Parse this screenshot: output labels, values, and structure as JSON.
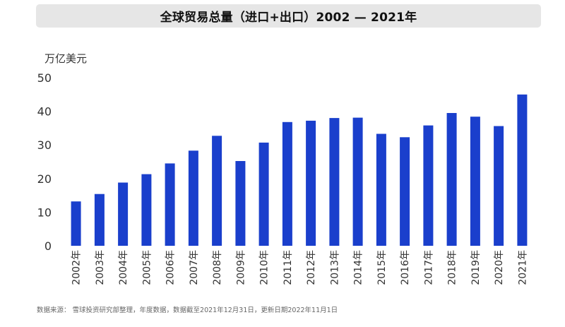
{
  "title": "全球贸易总量（进口+出口）2002 — 2021年",
  "unit_label": "万亿美元",
  "source_note": "数据来源： 雪球投资研究部整理，年度数据，数据截至2021年12月31日，更新日期2022年11月1日",
  "colors": {
    "bar": "#1a3fcc",
    "title_bg": "#e6e6e6",
    "axis_text": "#333333"
  },
  "chart_data": {
    "type": "bar",
    "title": "全球贸易总量（进口+出口）2002 — 2021年",
    "ylabel": "万亿美元",
    "xlabel": "",
    "ylim": [
      0,
      50
    ],
    "yticks": [
      0,
      10,
      20,
      30,
      40,
      50
    ],
    "grid": false,
    "categories": [
      "2002年",
      "2003年",
      "2004年",
      "2005年",
      "2006年",
      "2007年",
      "2008年",
      "2009年",
      "2010年",
      "2011年",
      "2012年",
      "2013年",
      "2014年",
      "2015年",
      "2016年",
      "2017年",
      "2018年",
      "2019年",
      "2020年",
      "2021年"
    ],
    "values": [
      13.2,
      15.4,
      18.8,
      21.3,
      24.5,
      28.3,
      32.7,
      25.2,
      30.7,
      36.8,
      37.2,
      38.0,
      38.1,
      33.3,
      32.3,
      35.8,
      39.5,
      38.4,
      35.6,
      45.0
    ]
  }
}
